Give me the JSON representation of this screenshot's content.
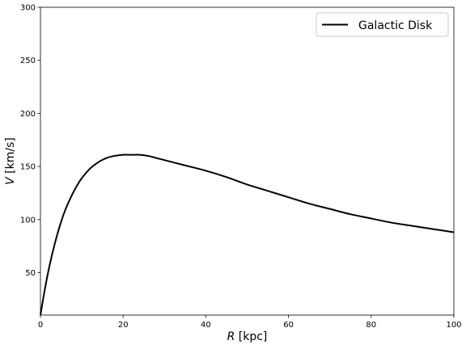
{
  "chart_data": {
    "type": "line",
    "title": "",
    "xlabel": "R [kpc]",
    "xlabel_var": "R",
    "xlabel_unit": " [kpc]",
    "ylabel": "V [km/s]",
    "ylabel_var": "V",
    "ylabel_unit": " [km/s]",
    "xlim": [
      0,
      100
    ],
    "ylim": [
      10,
      300
    ],
    "xticks": [
      0,
      20,
      40,
      60,
      80,
      100
    ],
    "yticks": [
      50,
      100,
      150,
      200,
      250,
      300
    ],
    "grid": false,
    "legend_position": "top-right",
    "series": [
      {
        "name": "Galactic Disk",
        "color": "#000000",
        "x": [
          0,
          1,
          2,
          3,
          4,
          5,
          6,
          7,
          8,
          9,
          10,
          12,
          14,
          16,
          18,
          20,
          22,
          24,
          26,
          28,
          30,
          35,
          40,
          45,
          50,
          55,
          60,
          65,
          70,
          75,
          80,
          85,
          90,
          95,
          100
        ],
        "y": [
          10,
          33,
          53,
          70,
          85,
          98,
          109,
          118,
          126,
          133,
          139,
          148,
          154,
          158,
          160,
          161,
          161,
          161,
          160,
          158,
          156,
          151,
          146,
          140,
          133,
          127,
          121,
          115,
          110,
          105,
          101,
          97,
          94,
          91,
          88
        ]
      }
    ]
  }
}
